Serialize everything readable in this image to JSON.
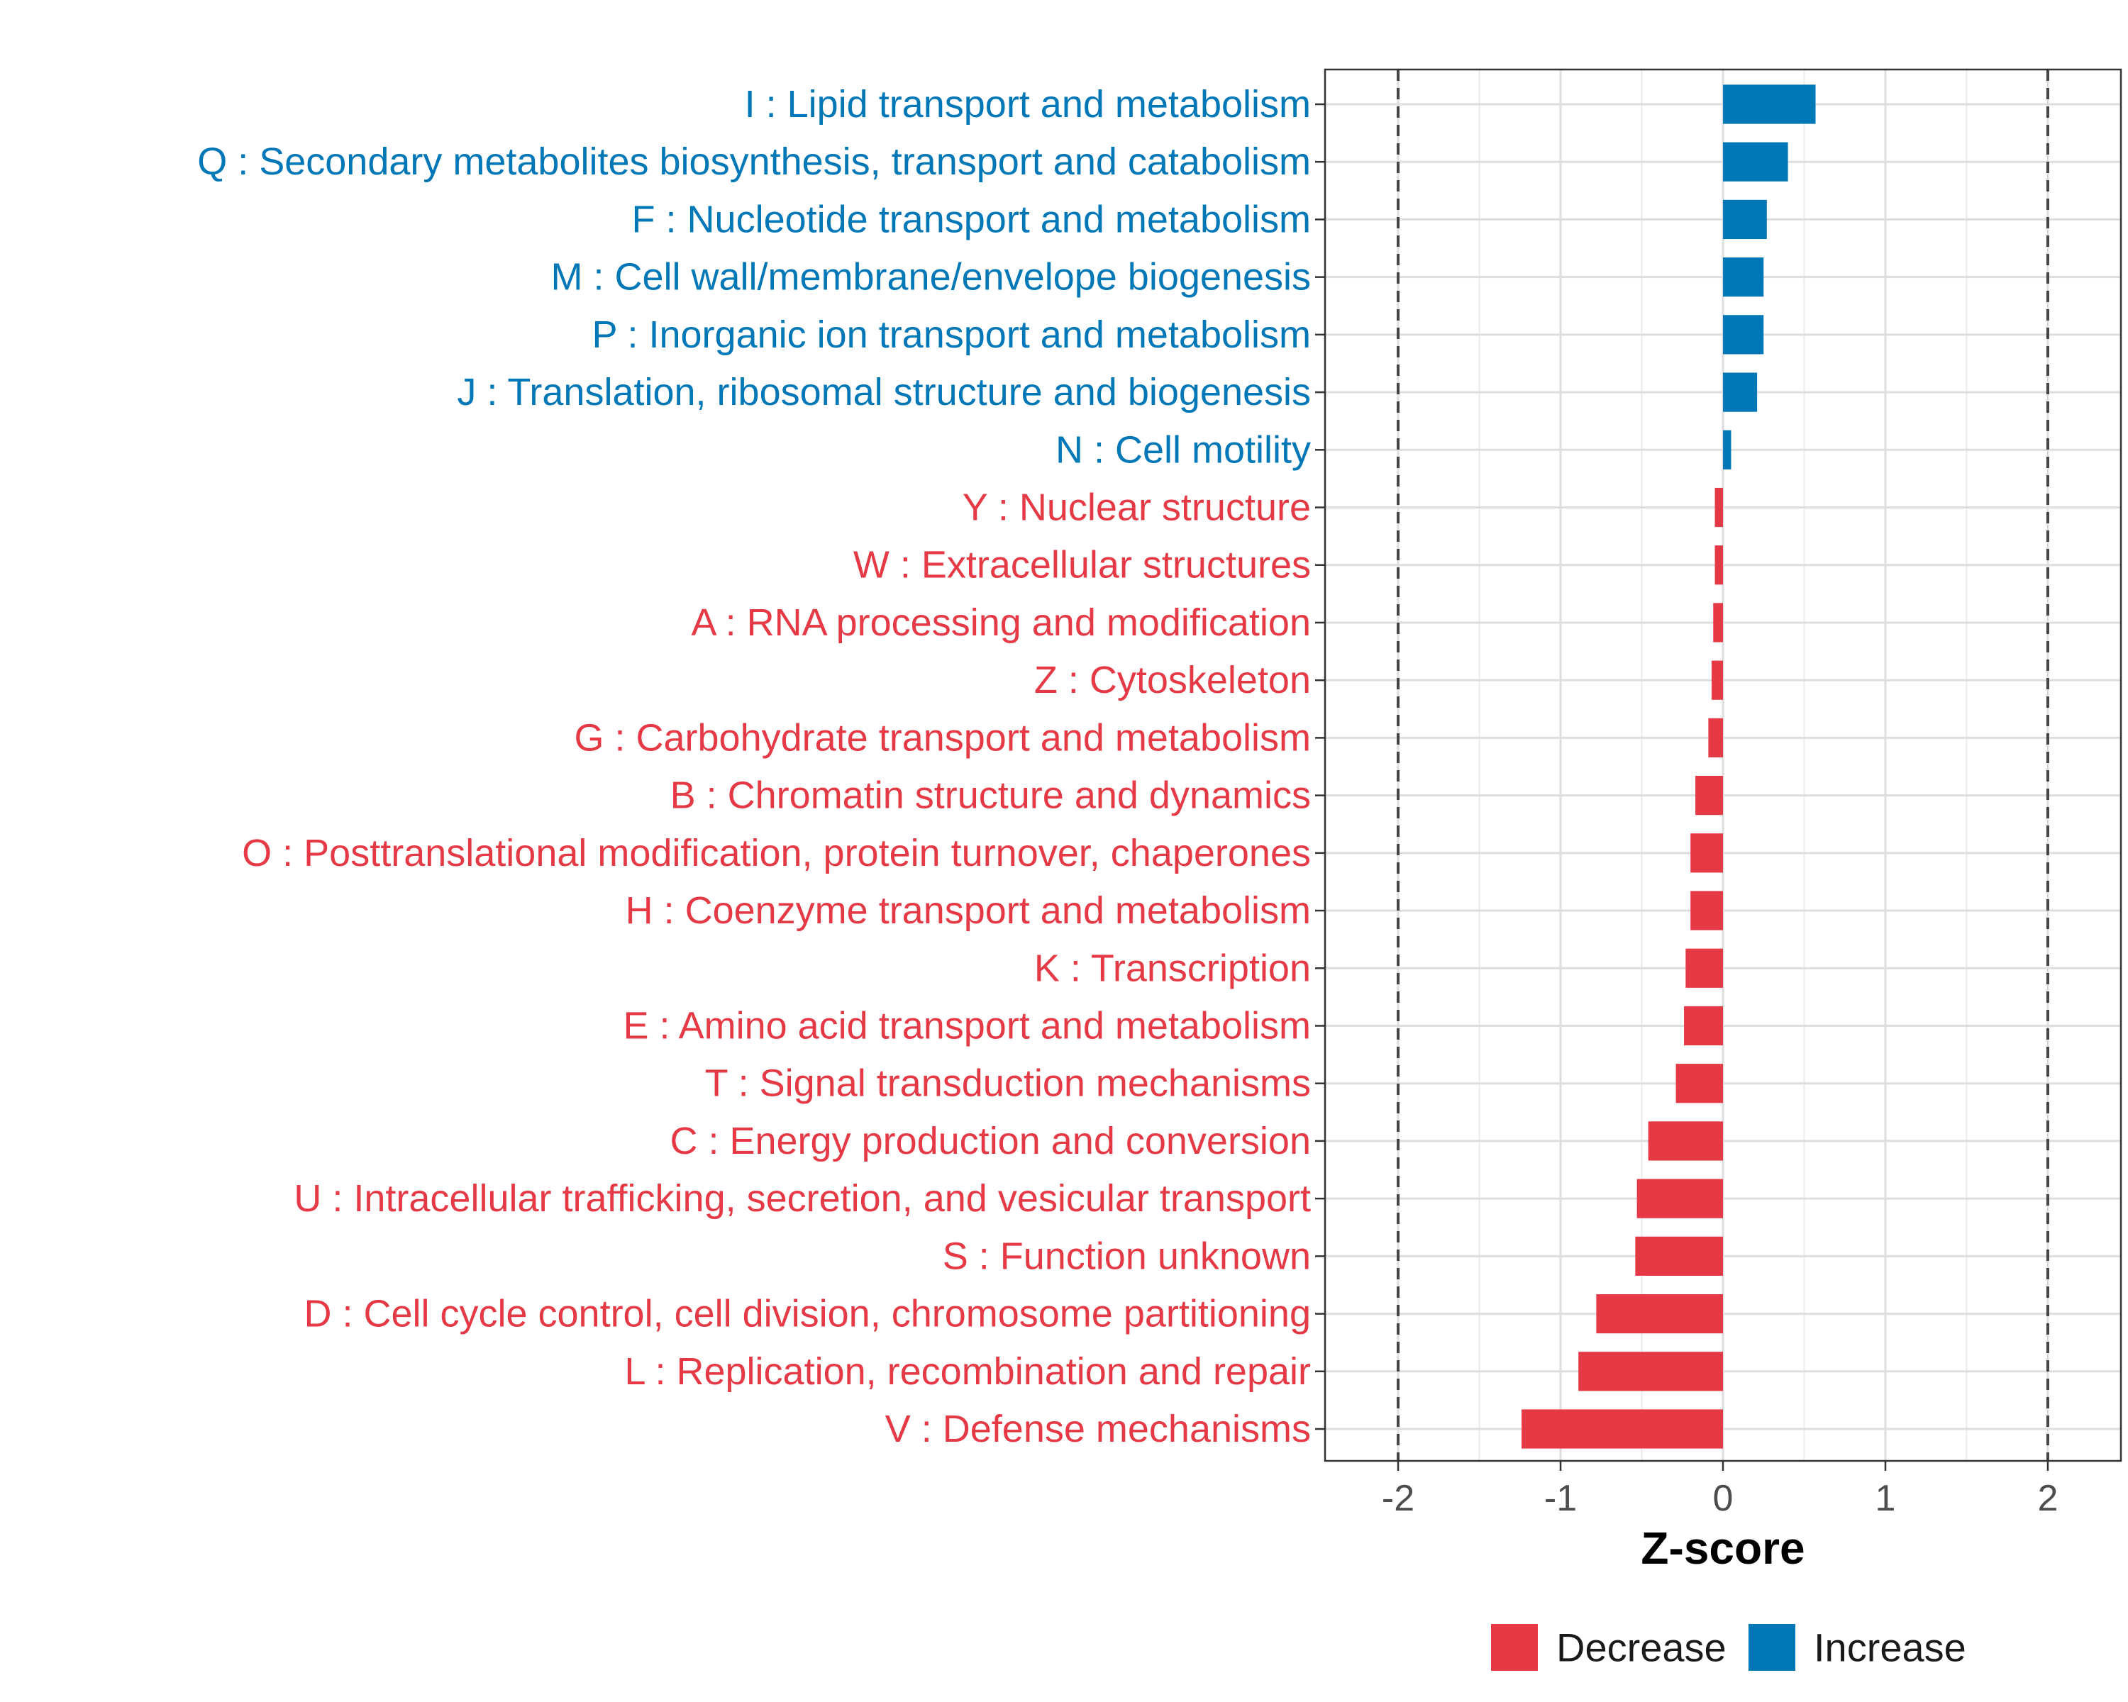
{
  "chart_data": {
    "type": "bar",
    "orientation": "horizontal",
    "xlabel": "Z-score",
    "ylabel": "",
    "xlim": [
      -2.45,
      2.45
    ],
    "x_ticks": [
      -2,
      -1,
      0,
      1,
      2
    ],
    "x_tick_labels": [
      "-2",
      "-1",
      "0",
      "1",
      "2"
    ],
    "reference_lines": [
      -2,
      2
    ],
    "grid": true,
    "colors": {
      "Decrease": "#e63946",
      "Increase": "#0077b6"
    },
    "legend": {
      "position": "bottom",
      "entries": [
        "Decrease",
        "Increase"
      ]
    },
    "categories": [
      {
        "label": "I : Lipid transport and metabolism",
        "value": 0.57,
        "group": "Increase"
      },
      {
        "label": "Q : Secondary metabolites biosynthesis, transport and catabolism",
        "value": 0.4,
        "group": "Increase"
      },
      {
        "label": "F : Nucleotide transport and metabolism",
        "value": 0.27,
        "group": "Increase"
      },
      {
        "label": "M : Cell wall/membrane/envelope biogenesis",
        "value": 0.25,
        "group": "Increase"
      },
      {
        "label": "P : Inorganic ion transport and metabolism",
        "value": 0.25,
        "group": "Increase"
      },
      {
        "label": "J : Translation, ribosomal structure and biogenesis",
        "value": 0.21,
        "group": "Increase"
      },
      {
        "label": "N : Cell motility",
        "value": 0.05,
        "group": "Increase"
      },
      {
        "label": "Y : Nuclear structure",
        "value": -0.05,
        "group": "Decrease"
      },
      {
        "label": "W : Extracellular structures",
        "value": -0.05,
        "group": "Decrease"
      },
      {
        "label": "A : RNA processing and modification",
        "value": -0.06,
        "group": "Decrease"
      },
      {
        "label": "Z : Cytoskeleton",
        "value": -0.07,
        "group": "Decrease"
      },
      {
        "label": "G : Carbohydrate transport and metabolism",
        "value": -0.09,
        "group": "Decrease"
      },
      {
        "label": "B : Chromatin structure and dynamics",
        "value": -0.17,
        "group": "Decrease"
      },
      {
        "label": "O : Posttranslational modification, protein turnover, chaperones",
        "value": -0.2,
        "group": "Decrease"
      },
      {
        "label": "H : Coenzyme transport and metabolism",
        "value": -0.2,
        "group": "Decrease"
      },
      {
        "label": "K : Transcription",
        "value": -0.23,
        "group": "Decrease"
      },
      {
        "label": "E : Amino acid transport and metabolism",
        "value": -0.24,
        "group": "Decrease"
      },
      {
        "label": "T : Signal transduction mechanisms",
        "value": -0.29,
        "group": "Decrease"
      },
      {
        "label": "C : Energy production and conversion",
        "value": -0.46,
        "group": "Decrease"
      },
      {
        "label": "U : Intracellular trafficking, secretion, and vesicular transport",
        "value": -0.53,
        "group": "Decrease"
      },
      {
        "label": "S : Function unknown",
        "value": -0.54,
        "group": "Decrease"
      },
      {
        "label": "D : Cell cycle control, cell division, chromosome partitioning",
        "value": -0.78,
        "group": "Decrease"
      },
      {
        "label": "L : Replication, recombination and repair",
        "value": -0.89,
        "group": "Decrease"
      },
      {
        "label": "V : Defense mechanisms",
        "value": -1.24,
        "group": "Decrease"
      }
    ]
  }
}
